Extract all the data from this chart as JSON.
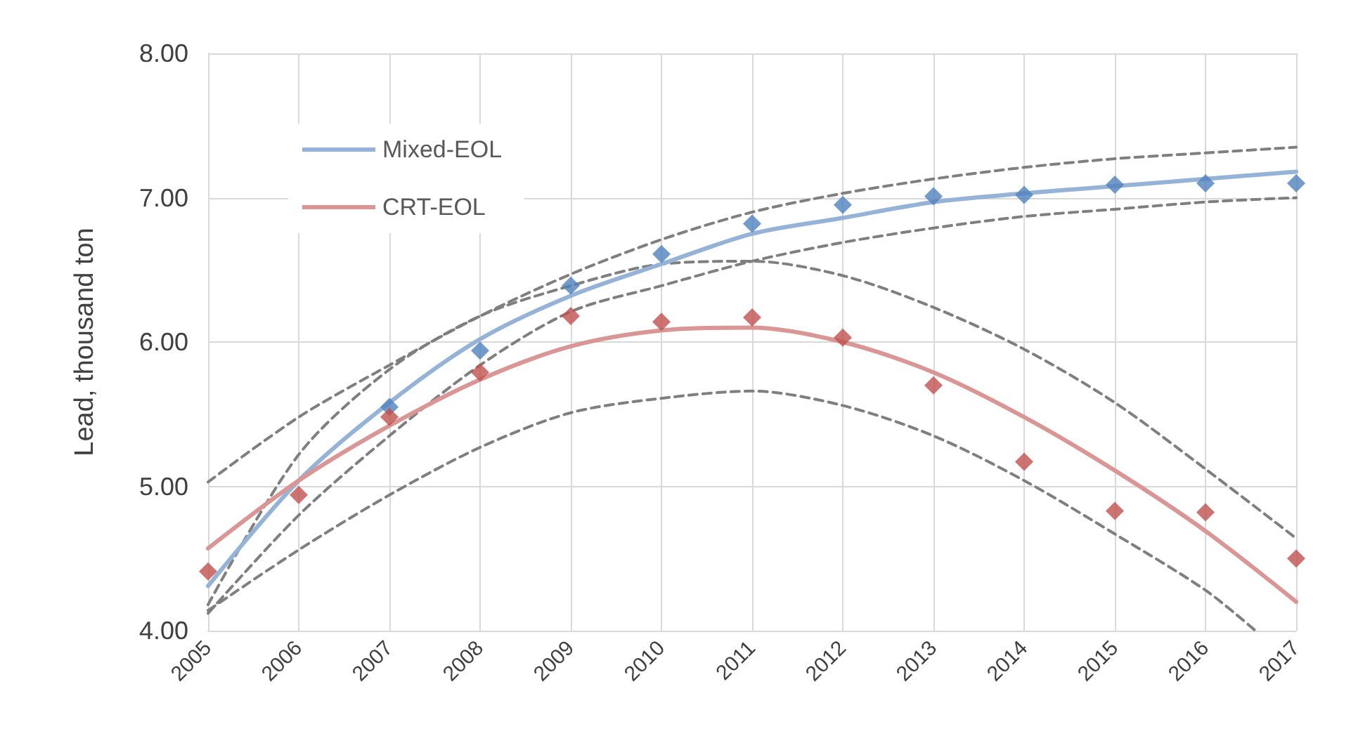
{
  "chart_data": {
    "type": "scatter",
    "ylabel": "Lead, thousand ton",
    "x": [
      2005,
      2006,
      2007,
      2008,
      2009,
      2010,
      2011,
      2012,
      2013,
      2014,
      2015,
      2016,
      2017
    ],
    "xlim": [
      2005,
      2017
    ],
    "xticks": [
      2005,
      2006,
      2007,
      2008,
      2009,
      2010,
      2011,
      2012,
      2013,
      2014,
      2015,
      2016,
      2017
    ],
    "ylim": [
      4,
      8
    ],
    "yticks": [
      {
        "value": 4,
        "label": "4.00"
      },
      {
        "value": 5,
        "label": "5.00"
      },
      {
        "value": 6,
        "label": "6.00"
      },
      {
        "value": 7,
        "label": "7.00"
      },
      {
        "value": 8,
        "label": "8.00"
      }
    ],
    "grid": true,
    "legend": "top left",
    "series": [
      {
        "type": "line",
        "marker": "none",
        "line_style": "dashed",
        "color": "#7f7f7f",
        "values": [
          5.03,
          5.48,
          5.84,
          6.18,
          6.47,
          6.71,
          6.9,
          7.03,
          7.13,
          7.21,
          7.27,
          7.31,
          7.35
        ]
      },
      {
        "type": "line",
        "marker": "none",
        "line_style": "dashed",
        "color": "#7f7f7f",
        "values": [
          4.12,
          4.8,
          5.35,
          5.84,
          6.21,
          6.39,
          6.56,
          6.69,
          6.79,
          6.87,
          6.92,
          6.97,
          7.0
        ]
      },
      {
        "type": "line",
        "marker": "none",
        "line_style": "dashed",
        "color": "#7f7f7f",
        "values": [
          4.18,
          5.22,
          5.81,
          6.18,
          6.39,
          6.54,
          6.56,
          6.46,
          6.24,
          5.95,
          5.58,
          5.12,
          4.64
        ]
      },
      {
        "type": "line",
        "marker": "none",
        "line_style": "dashed",
        "color": "#7f7f7f",
        "x": [
          2005,
          2006,
          2007,
          2008,
          2009,
          2010,
          2011,
          2012,
          2013,
          2014,
          2015,
          2016,
          2016.55
        ],
        "values": [
          4.14,
          4.56,
          4.94,
          5.27,
          5.51,
          5.61,
          5.66,
          5.56,
          5.35,
          5.04,
          4.67,
          4.28,
          4.0
        ]
      },
      {
        "type": "line",
        "marker": "none",
        "line_style": "solid",
        "name": "Mixed-EOL",
        "color": "#95b3d7",
        "values": [
          4.31,
          5.04,
          5.58,
          6.02,
          6.32,
          6.54,
          6.75,
          6.86,
          6.97,
          7.03,
          7.08,
          7.13,
          7.18
        ]
      },
      {
        "type": "line",
        "marker": "none",
        "line_style": "solid",
        "name": "CRT-EOL",
        "color": "#d99694",
        "values": [
          4.57,
          5.04,
          5.42,
          5.74,
          5.97,
          6.08,
          6.1,
          6.0,
          5.79,
          5.48,
          5.11,
          4.69,
          4.2
        ]
      },
      {
        "marker": "diamond",
        "color": "#4f81bd",
        "values": [
          null,
          null,
          5.55,
          5.94,
          6.39,
          6.61,
          6.82,
          6.95,
          7.01,
          7.02,
          7.09,
          7.1,
          7.1
        ]
      },
      {
        "marker": "diamond",
        "color": "#c0504d",
        "values": [
          4.41,
          4.94,
          5.48,
          5.79,
          6.18,
          6.14,
          6.17,
          6.03,
          5.7,
          5.17,
          4.83,
          4.82,
          4.5
        ]
      }
    ]
  }
}
